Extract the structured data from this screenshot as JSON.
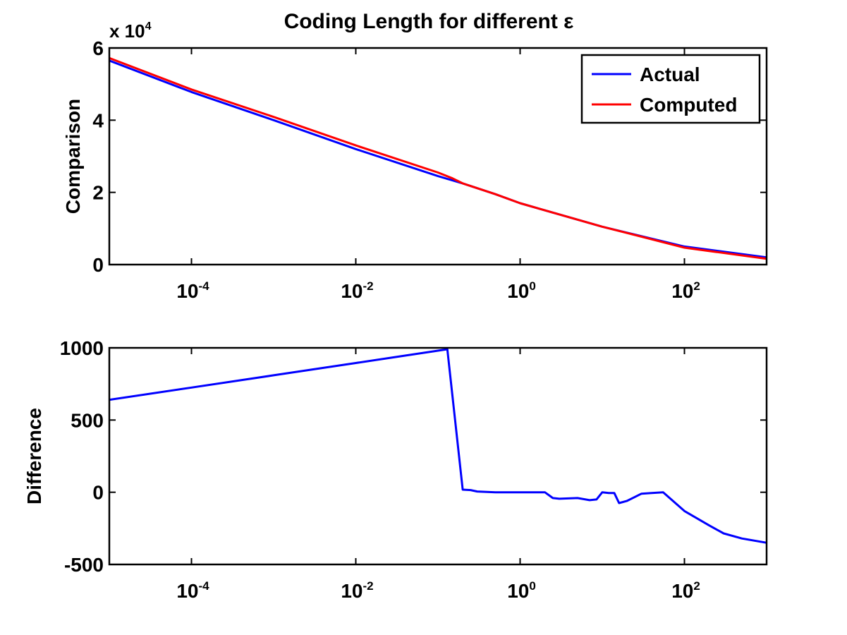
{
  "figure": {
    "title": "Coding Length for different ε"
  },
  "chart_data": [
    {
      "type": "line",
      "title": "Coding Length for different ε",
      "xlabel": "",
      "ylabel": "Comparison",
      "xscale": "log",
      "xlim": [
        1e-05,
        1000
      ],
      "xticks": [
        0.0001,
        0.01,
        1,
        100
      ],
      "xtick_labels": [
        {
          "base": "10",
          "exp": "-4"
        },
        {
          "base": "10",
          "exp": "-2"
        },
        {
          "base": "10",
          "exp": "0"
        },
        {
          "base": "10",
          "exp": "2"
        }
      ],
      "ylim": [
        0,
        60000
      ],
      "yticks": [
        0,
        20000,
        40000,
        60000
      ],
      "ytick_labels": [
        "0",
        "2",
        "4",
        "6"
      ],
      "y_multiplier": {
        "base": "x 10",
        "exp": "4"
      },
      "grid": false,
      "legend": "top-right",
      "series": [
        {
          "name": "Actual",
          "color": "#0000ff",
          "points": [
            [
              1e-05,
              56500
            ],
            [
              0.0001,
              47800
            ],
            [
              0.001,
              40000
            ],
            [
              0.01,
              32000
            ],
            [
              0.1,
              24500
            ],
            [
              0.2,
              22500
            ],
            [
              0.5,
              19500
            ],
            [
              1,
              17000
            ],
            [
              10,
              10500
            ],
            [
              100,
              5000
            ],
            [
              1000,
              2000
            ]
          ]
        },
        {
          "name": "Computed",
          "color": "#ff0000",
          "points": [
            [
              1e-05,
              57200
            ],
            [
              0.0001,
              48500
            ],
            [
              0.001,
              40900
            ],
            [
              0.01,
              33000
            ],
            [
              0.1,
              25500
            ],
            [
              0.15,
              23900
            ],
            [
              0.2,
              22500
            ],
            [
              0.5,
              19500
            ],
            [
              1,
              17000
            ],
            [
              10,
              10500
            ],
            [
              100,
              4700
            ],
            [
              1000,
              1600
            ]
          ]
        }
      ]
    },
    {
      "type": "line",
      "title": "",
      "xlabel": "",
      "ylabel": "Difference",
      "xscale": "log",
      "xlim": [
        1e-05,
        1000
      ],
      "xticks": [
        0.0001,
        0.01,
        1,
        100
      ],
      "xtick_labels": [
        {
          "base": "10",
          "exp": "-4"
        },
        {
          "base": "10",
          "exp": "-2"
        },
        {
          "base": "10",
          "exp": "0"
        },
        {
          "base": "10",
          "exp": "2"
        }
      ],
      "ylim": [
        -500,
        1000
      ],
      "yticks": [
        -500,
        0,
        500,
        1000
      ],
      "ytick_labels": [
        "-500",
        "0",
        "500",
        "1000"
      ],
      "grid": false,
      "series": [
        {
          "color": "#0000ff",
          "points": [
            [
              1e-05,
              640
            ],
            [
              0.0001,
              725
            ],
            [
              0.001,
              810
            ],
            [
              0.01,
              895
            ],
            [
              0.13,
              990
            ],
            [
              0.2,
              18
            ],
            [
              0.25,
              15
            ],
            [
              0.3,
              5
            ],
            [
              0.5,
              0
            ],
            [
              1,
              0
            ],
            [
              2,
              0
            ],
            [
              2.5,
              -40
            ],
            [
              3,
              -45
            ],
            [
              5,
              -40
            ],
            [
              7,
              -55
            ],
            [
              8.5,
              -50
            ],
            [
              10,
              0
            ],
            [
              12,
              -5
            ],
            [
              14,
              -5
            ],
            [
              16,
              -75
            ],
            [
              20,
              -60
            ],
            [
              30,
              -10
            ],
            [
              40,
              -5
            ],
            [
              55,
              0
            ],
            [
              100,
              -130
            ],
            [
              200,
              -230
            ],
            [
              300,
              -285
            ],
            [
              500,
              -320
            ],
            [
              1000,
              -350
            ]
          ]
        }
      ]
    }
  ]
}
